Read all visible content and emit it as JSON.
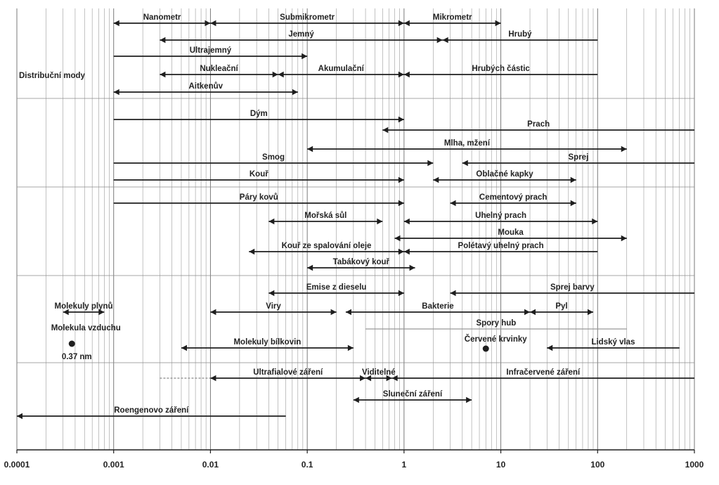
{
  "chart_data": {
    "type": "range",
    "x_scale": "log",
    "xlim": [
      0.0001,
      1000
    ],
    "x_ticks": [
      {
        "v": 0.0001,
        "label": "0.0001"
      },
      {
        "v": 0.001,
        "label": "0.001"
      },
      {
        "v": 0.01,
        "label": "0.01"
      },
      {
        "v": 0.1,
        "label": "0.1"
      },
      {
        "v": 1,
        "label": "1"
      },
      {
        "v": 10,
        "label": "10"
      },
      {
        "v": 100,
        "label": "100"
      },
      {
        "v": 1000,
        "label": "1000"
      }
    ],
    "grid": "vertical-log",
    "group_title": "Distribuční mody",
    "ranges": [
      {
        "label": "Nanometr",
        "from": 0.001,
        "to": 0.01,
        "row": 0,
        "dashed_to": null,
        "arrow_left": true,
        "arrow_right": true
      },
      {
        "label": "Submikrometr",
        "from": 0.01,
        "to": 1,
        "row": 0,
        "dashed_to": null,
        "arrow_left": true,
        "arrow_right": true
      },
      {
        "label": "Mikrometr",
        "from": 1,
        "to": 10,
        "row": 0,
        "dashed_to": null,
        "arrow_left": true,
        "arrow_right": true
      },
      {
        "label": "Jemný",
        "from": 0.003,
        "to": 2.5,
        "row": 1,
        "dashed_to": null,
        "arrow_left": true,
        "arrow_right": true
      },
      {
        "label": "Hrubý",
        "from": 2.5,
        "to": 100,
        "row": 1,
        "dashed_to": null,
        "arrow_left": true,
        "arrow_right": false
      },
      {
        "label": "Ultrajemný",
        "from": 0.001,
        "to": 0.1,
        "row": 2,
        "dashed_to": null,
        "arrow_left": false,
        "arrow_right": true
      },
      {
        "label": "Nukleační",
        "from": 0.003,
        "to": 0.05,
        "row": 3,
        "dashed_to": null,
        "arrow_left": true,
        "arrow_right": true
      },
      {
        "label": "Akumulační",
        "from": 0.05,
        "to": 1,
        "row": 3,
        "dashed_to": null,
        "arrow_left": true,
        "arrow_right": true
      },
      {
        "label": "Hrubých částic",
        "from": 1,
        "to": 100,
        "row": 3,
        "dashed_to": null,
        "arrow_left": true,
        "arrow_right": false
      },
      {
        "label": "Aitkenův",
        "from": 0.001,
        "to": 0.08,
        "row": 4,
        "dashed_to": null,
        "arrow_left": true,
        "arrow_right": true
      },
      {
        "label": "Dým",
        "from": 0.001,
        "to": 1,
        "row": 5,
        "dashed_to": null,
        "arrow_left": false,
        "arrow_right": true
      },
      {
        "label": "Prach",
        "from": 0.6,
        "to": 1000,
        "row": 6,
        "dashed_to": null,
        "arrow_left": true,
        "arrow_right": false
      },
      {
        "label": "Mlha, mžení",
        "from": 0.1,
        "to": 200,
        "row": 7,
        "dashed_to": null,
        "arrow_left": true,
        "arrow_right": true
      },
      {
        "label": "Smog",
        "from": 0.001,
        "to": 2,
        "row": 8,
        "dashed_to": null,
        "arrow_left": false,
        "arrow_right": true
      },
      {
        "label": "Sprej",
        "from": 4,
        "to": 1000,
        "row": 8,
        "dashed_to": null,
        "arrow_left": true,
        "arrow_right": false
      },
      {
        "label": "Kouř",
        "from": 0.001,
        "to": 1,
        "row": 9,
        "dashed_to": null,
        "arrow_left": false,
        "arrow_right": true
      },
      {
        "label": "Oblačné kapky",
        "from": 2,
        "to": 60,
        "row": 9,
        "dashed_to": null,
        "arrow_left": true,
        "arrow_right": true
      },
      {
        "label": "Páry kovů",
        "from": 0.001,
        "to": 1,
        "row": 10,
        "dashed_to": null,
        "arrow_left": false,
        "arrow_right": true
      },
      {
        "label": "Cementový prach",
        "from": 3,
        "to": 60,
        "row": 10,
        "dashed_to": null,
        "arrow_left": true,
        "arrow_right": true
      },
      {
        "label": "Mořská sůl",
        "from": 0.04,
        "to": 0.6,
        "row": 11,
        "dashed_to": null,
        "arrow_left": true,
        "arrow_right": true
      },
      {
        "label": "Uhelný prach",
        "from": 1,
        "to": 100,
        "row": 11,
        "dashed_to": null,
        "arrow_left": true,
        "arrow_right": true
      },
      {
        "label": "Mouka",
        "from": 0.8,
        "to": 200,
        "row": 12,
        "dashed_to": null,
        "arrow_left": true,
        "arrow_right": true
      },
      {
        "label": "Kouř ze spalování oleje",
        "from": 0.025,
        "to": 1,
        "row": 13,
        "dashed_to": null,
        "arrow_left": true,
        "arrow_right": true
      },
      {
        "label": "Polétavý uhelný prach",
        "from": 1,
        "to": 100,
        "row": 13,
        "dashed_to": null,
        "arrow_left": true,
        "arrow_right": false
      },
      {
        "label": "Tabákový kouř",
        "from": 0.1,
        "to": 1.3,
        "row": 14,
        "dashed_to": null,
        "arrow_left": true,
        "arrow_right": true
      },
      {
        "label": "Emise z dieselu",
        "from": 0.04,
        "to": 1,
        "row": 15,
        "dashed_to": null,
        "arrow_left": true,
        "arrow_right": true
      },
      {
        "label": "Sprej barvy",
        "from": 3,
        "to": 1000,
        "row": 15,
        "dashed_to": null,
        "arrow_left": true,
        "arrow_right": false
      },
      {
        "label": "Molekuly plynů",
        "from": 0.0003,
        "to": 0.0008,
        "row": 16,
        "dashed_to": null,
        "arrow_left": true,
        "arrow_right": true
      },
      {
        "label": "Viry",
        "from": 0.01,
        "to": 0.2,
        "row": 16,
        "dashed_to": null,
        "arrow_left": true,
        "arrow_right": true
      },
      {
        "label": "Bakterie",
        "from": 0.25,
        "to": 20,
        "row": 16,
        "dashed_to": null,
        "arrow_left": true,
        "arrow_right": true
      },
      {
        "label": "Pyl",
        "from": 20,
        "to": 90,
        "row": 16,
        "dashed_to": null,
        "arrow_left": true,
        "arrow_right": true
      },
      {
        "label": "Spory hub",
        "from": 0.4,
        "to": 200,
        "row": 17,
        "dashed_to": null,
        "arrow_left": false,
        "arrow_right": false
      },
      {
        "label": "Molekuly bílkovin",
        "from": 0.005,
        "to": 0.3,
        "row": 18,
        "dashed_to": null,
        "arrow_left": true,
        "arrow_right": true
      },
      {
        "label": "Lidský vlas",
        "from": 30,
        "to": 700,
        "row": 18,
        "dashed_to": null,
        "arrow_left": true,
        "arrow_right": false
      },
      {
        "label": "Ultrafialové záření",
        "from": 0.01,
        "to": 0.4,
        "row": 19,
        "dashed_to": 0.003,
        "arrow_left": true,
        "arrow_right": true
      },
      {
        "label": "Viditelné",
        "from": 0.4,
        "to": 0.75,
        "row": 19,
        "dashed_to": null,
        "arrow_left": true,
        "arrow_right": true
      },
      {
        "label": "Infračervené záření",
        "from": 0.75,
        "to": 1000,
        "row": 19,
        "dashed_to": null,
        "arrow_left": true,
        "arrow_right": false
      },
      {
        "label": "Sluneční záření",
        "from": 0.3,
        "to": 5,
        "row": 20,
        "dashed_to": null,
        "arrow_left": true,
        "arrow_right": true
      },
      {
        "label": "Roengenovo záření",
        "from": 0.0001,
        "to": 0.06,
        "row": 21,
        "dashed_to": null,
        "arrow_left": true,
        "arrow_right": false
      }
    ],
    "points": [
      {
        "label": "Molekula vzduchu",
        "value_label": "0.37 nm",
        "x": 0.00037,
        "row": 18
      },
      {
        "label": "Červené krvinky",
        "value_label": "",
        "x": 7,
        "row": 18
      }
    ],
    "colors": {
      "line": "#1e1e1e",
      "grid": "#9a9a9a",
      "text": "#222222"
    }
  }
}
